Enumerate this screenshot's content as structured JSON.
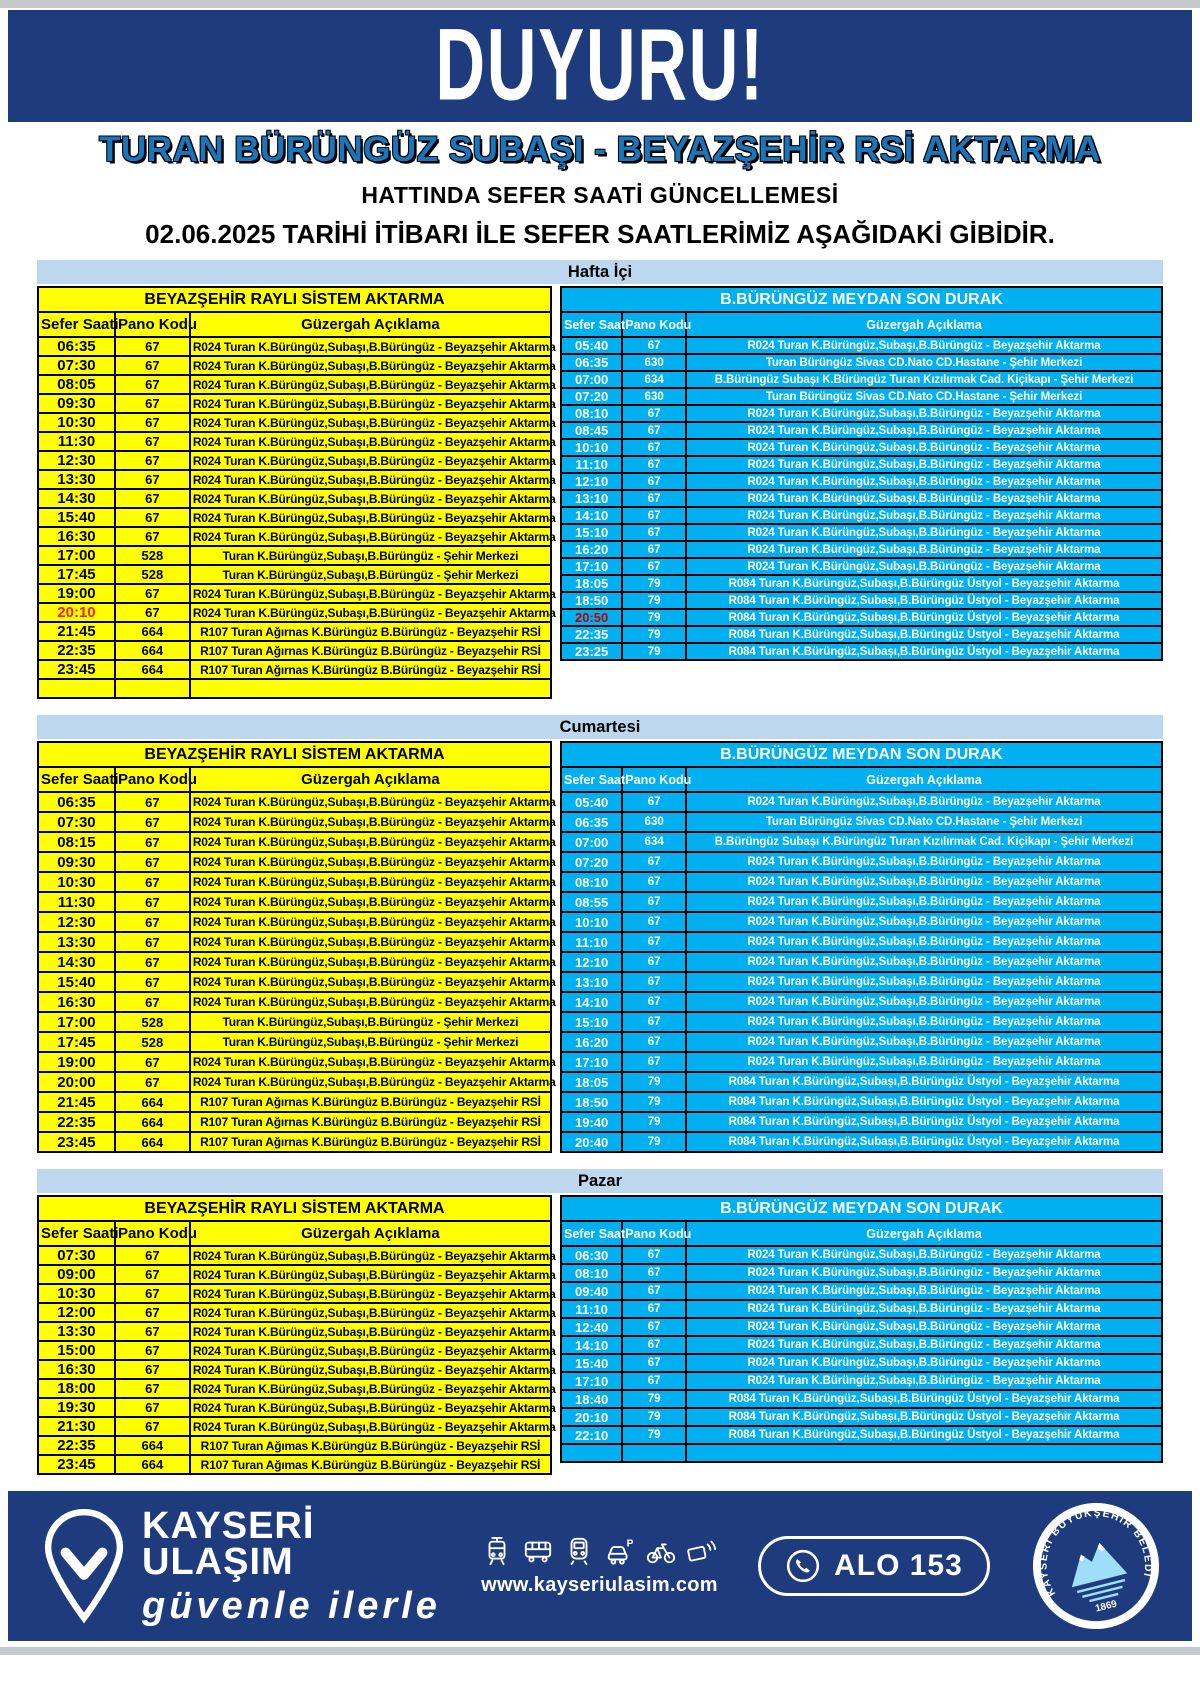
{
  "page": {
    "banner": "DUYURU!",
    "title": "TURAN BÜRÜNGÜZ SUBAŞI - BEYAZŞEHİR RSİ AKTARMA",
    "subtitle": "HATTINDA SEFER SAATİ GÜNCELLEMESİ",
    "date_line": "02.06.2025 TARİHİ İTİBARI İLE SEFER SAATLERİMİZ AŞAĞIDAKİ GİBİDİR."
  },
  "colors": {
    "navy": "#1e3c7d",
    "title_blue": "#1a75bb",
    "band_blue": "#bdd7ee",
    "left_table_yellow": "#ffff00",
    "right_table_cyan": "#00b0f0",
    "highlight_red_left": "#f61e00",
    "highlight_red_right": "#c00000"
  },
  "columns": [
    "Sefer Saati",
    "Pano Kodu",
    "Güzergah Açıklama"
  ],
  "sections": [
    {
      "label": "Hafta İçi",
      "left": {
        "title": "BEYAZŞEHİR RAYLI SİSTEM AKTARMA",
        "rows": [
          [
            "06:35",
            "67",
            "R024 Turan K.Bürüngüz,Subaşı,B.Bürüngüz - Beyazşehir Aktarma"
          ],
          [
            "07:30",
            "67",
            "R024 Turan K.Bürüngüz,Subaşı,B.Bürüngüz - Beyazşehir Aktarma"
          ],
          [
            "08:05",
            "67",
            "R024 Turan K.Bürüngüz,Subaşı,B.Bürüngüz - Beyazşehir Aktarma"
          ],
          [
            "09:30",
            "67",
            "R024 Turan K.Bürüngüz,Subaşı,B.Bürüngüz - Beyazşehir Aktarma"
          ],
          [
            "10:30",
            "67",
            "R024 Turan K.Bürüngüz,Subaşı,B.Bürüngüz - Beyazşehir Aktarma"
          ],
          [
            "11:30",
            "67",
            "R024 Turan K.Bürüngüz,Subaşı,B.Bürüngüz - Beyazşehir Aktarma"
          ],
          [
            "12:30",
            "67",
            "R024 Turan K.Bürüngüz,Subaşı,B.Bürüngüz - Beyazşehir Aktarma"
          ],
          [
            "13:30",
            "67",
            "R024 Turan K.Bürüngüz,Subaşı,B.Bürüngüz - Beyazşehir Aktarma"
          ],
          [
            "14:30",
            "67",
            "R024 Turan K.Bürüngüz,Subaşı,B.Bürüngüz - Beyazşehir Aktarma"
          ],
          [
            "15:40",
            "67",
            "R024 Turan K.Bürüngüz,Subaşı,B.Bürüngüz - Beyazşehir Aktarma"
          ],
          [
            "16:30",
            "67",
            "R024 Turan K.Bürüngüz,Subaşı,B.Bürüngüz - Beyazşehir Aktarma"
          ],
          [
            "17:00",
            "528",
            "Turan K.Bürüngüz,Subaşı,B.Bürüngüz - Şehir Merkezi"
          ],
          [
            "17:45",
            "528",
            "Turan K.Bürüngüz,Subaşı,B.Bürüngüz - Şehir Merkezi"
          ],
          [
            "19:00",
            "67",
            "R024 Turan K.Bürüngüz,Subaşı,B.Bürüngüz - Beyazşehir Aktarma"
          ],
          [
            "20:10",
            "67",
            "R024 Turan K.Bürüngüz,Subaşı,B.Bürüngüz - Beyazşehir Aktarma",
            true
          ],
          [
            "21:45",
            "664",
            "R107 Turan Ağırnas K.Bürüngüz B.Bürüngüz - Beyazşehir RSİ"
          ],
          [
            "22:35",
            "664",
            "R107 Turan Ağırnas K.Bürüngüz B.Bürüngüz - Beyazşehir RSİ"
          ],
          [
            "23:45",
            "664",
            "R107 Turan Ağırnas K.Bürüngüz B.Bürüngüz - Beyazşehir RSİ"
          ],
          [
            "",
            "",
            ""
          ]
        ]
      },
      "right": {
        "title": "B.BÜRÜNGÜZ MEYDAN SON DURAK",
        "rows": [
          [
            "05:40",
            "67",
            "R024 Turan K.Bürüngüz,Subaşı,B.Bürüngüz - Beyazşehir Aktarma"
          ],
          [
            "06:35",
            "630",
            "Turan Bürüngüz Sivas CD.Nato CD.Hastane - Şehir Merkezi"
          ],
          [
            "07:00",
            "634",
            "B.Bürüngüz Subaşı K.Bürüngüz Turan Kızılırmak Cad. Kiçikapı - Şehir Merkezi"
          ],
          [
            "07:20",
            "630",
            "Turan Bürüngüz Sivas CD.Nato CD.Hastane - Şehir Merkezi"
          ],
          [
            "08:10",
            "67",
            "R024 Turan K.Bürüngüz,Subaşı,B.Bürüngüz - Beyazşehir Aktarma"
          ],
          [
            "08:45",
            "67",
            "R024 Turan K.Bürüngüz,Subaşı,B.Bürüngüz - Beyazşehir Aktarma"
          ],
          [
            "10:10",
            "67",
            "R024 Turan K.Bürüngüz,Subaşı,B.Bürüngüz - Beyazşehir Aktarma"
          ],
          [
            "11:10",
            "67",
            "R024 Turan K.Bürüngüz,Subaşı,B.Bürüngüz - Beyazşehir Aktarma"
          ],
          [
            "12:10",
            "67",
            "R024 Turan K.Bürüngüz,Subaşı,B.Bürüngüz - Beyazşehir Aktarma"
          ],
          [
            "13:10",
            "67",
            "R024 Turan K.Bürüngüz,Subaşı,B.Bürüngüz - Beyazşehir Aktarma"
          ],
          [
            "14:10",
            "67",
            "R024 Turan K.Bürüngüz,Subaşı,B.Bürüngüz - Beyazşehir Aktarma"
          ],
          [
            "15:10",
            "67",
            "R024 Turan K.Bürüngüz,Subaşı,B.Bürüngüz - Beyazşehir Aktarma"
          ],
          [
            "16:20",
            "67",
            "R024 Turan K.Bürüngüz,Subaşı,B.Bürüngüz - Beyazşehir Aktarma"
          ],
          [
            "17:10",
            "67",
            "R024 Turan K.Bürüngüz,Subaşı,B.Bürüngüz - Beyazşehir Aktarma"
          ],
          [
            "18:05",
            "79",
            "R084 Turan K.Bürüngüz,Subaşı,B.Bürüngüz Üstyol - Beyazşehir Aktarma"
          ],
          [
            "18:50",
            "79",
            "R084 Turan K.Bürüngüz,Subaşı,B.Bürüngüz Üstyol - Beyazşehir Aktarma"
          ],
          [
            "20:50",
            "79",
            "R084 Turan K.Bürüngüz,Subaşı,B.Bürüngüz Üstyol - Beyazşehir Aktarma",
            true
          ],
          [
            "22:35",
            "79",
            "R084 Turan K.Bürüngüz,Subaşı,B.Bürüngüz Üstyol - Beyazşehir Aktarma"
          ],
          [
            "23:25",
            "79",
            "R084 Turan K.Bürüngüz,Subaşı,B.Bürüngüz Üstyol - Beyazşehir Aktarma"
          ]
        ]
      }
    },
    {
      "label": "Cumartesi",
      "left": {
        "title": "BEYAZŞEHİR RAYLI SİSTEM AKTARMA",
        "rows": [
          [
            "06:35",
            "67",
            "R024 Turan K.Bürüngüz,Subaşı,B.Bürüngüz - Beyazşehir Aktarma"
          ],
          [
            "07:30",
            "67",
            "R024 Turan K.Bürüngüz,Subaşı,B.Bürüngüz - Beyazşehir Aktarma"
          ],
          [
            "08:15",
            "67",
            "R024 Turan K.Bürüngüz,Subaşı,B.Bürüngüz - Beyazşehir Aktarma"
          ],
          [
            "09:30",
            "67",
            "R024 Turan K.Bürüngüz,Subaşı,B.Bürüngüz - Beyazşehir Aktarma"
          ],
          [
            "10:30",
            "67",
            "R024 Turan K.Bürüngüz,Subaşı,B.Bürüngüz - Beyazşehir Aktarma"
          ],
          [
            "11:30",
            "67",
            "R024 Turan K.Bürüngüz,Subaşı,B.Bürüngüz - Beyazşehir Aktarma"
          ],
          [
            "12:30",
            "67",
            "R024 Turan K.Bürüngüz,Subaşı,B.Bürüngüz - Beyazşehir Aktarma"
          ],
          [
            "13:30",
            "67",
            "R024 Turan K.Bürüngüz,Subaşı,B.Bürüngüz - Beyazşehir Aktarma"
          ],
          [
            "14:30",
            "67",
            "R024 Turan K.Bürüngüz,Subaşı,B.Bürüngüz - Beyazşehir Aktarma"
          ],
          [
            "15:40",
            "67",
            "R024 Turan K.Bürüngüz,Subaşı,B.Bürüngüz - Beyazşehir Aktarma"
          ],
          [
            "16:30",
            "67",
            "R024 Turan K.Bürüngüz,Subaşı,B.Bürüngüz - Beyazşehir Aktarma"
          ],
          [
            "17:00",
            "528",
            "Turan K.Bürüngüz,Subaşı,B.Bürüngüz - Şehir Merkezi"
          ],
          [
            "17:45",
            "528",
            "Turan K.Bürüngüz,Subaşı,B.Bürüngüz - Şehir Merkezi"
          ],
          [
            "19:00",
            "67",
            "R024 Turan K.Bürüngüz,Subaşı,B.Bürüngüz - Beyazşehir Aktarma"
          ],
          [
            "20:00",
            "67",
            "R024 Turan K.Bürüngüz,Subaşı,B.Bürüngüz - Beyazşehir Aktarma"
          ],
          [
            "21:45",
            "664",
            "R107 Turan Ağırnas K.Bürüngüz B.Bürüngüz - Beyazşehir RSİ"
          ],
          [
            "22:35",
            "664",
            "R107 Turan Ağırnas K.Bürüngüz B.Bürüngüz - Beyazşehir RSİ"
          ],
          [
            "23:45",
            "664",
            "R107 Turan Ağırnas K.Bürüngüz B.Bürüngüz - Beyazşehir RSİ"
          ]
        ]
      },
      "right": {
        "title": "B.BÜRÜNGÜZ MEYDAN SON DURAK",
        "rows": [
          [
            "05:40",
            "67",
            "R024 Turan K.Bürüngüz,Subaşı,B.Bürüngüz - Beyazşehir Aktarma"
          ],
          [
            "06:35",
            "630",
            "Turan Bürüngüz Sivas CD.Nato CD.Hastane - Şehir Merkezi"
          ],
          [
            "07:00",
            "634",
            "B.Bürüngüz Subaşı K.Bürüngüz Turan Kızılırmak Cad. Kiçikapı - Şehir Merkezi"
          ],
          [
            "07:20",
            "67",
            "R024 Turan K.Bürüngüz,Subaşı,B.Bürüngüz - Beyazşehir Aktarma"
          ],
          [
            "08:10",
            "67",
            "R024 Turan K.Bürüngüz,Subaşı,B.Bürüngüz - Beyazşehir Aktarma"
          ],
          [
            "08:55",
            "67",
            "R024 Turan K.Bürüngüz,Subaşı,B.Bürüngüz - Beyazşehir Aktarma"
          ],
          [
            "10:10",
            "67",
            "R024 Turan K.Bürüngüz,Subaşı,B.Bürüngüz - Beyazşehir Aktarma"
          ],
          [
            "11:10",
            "67",
            "R024 Turan K.Bürüngüz,Subaşı,B.Bürüngüz - Beyazşehir Aktarma"
          ],
          [
            "12:10",
            "67",
            "R024 Turan K.Bürüngüz,Subaşı,B.Bürüngüz - Beyazşehir Aktarma"
          ],
          [
            "13:10",
            "67",
            "R024 Turan K.Bürüngüz,Subaşı,B.Bürüngüz - Beyazşehir Aktarma"
          ],
          [
            "14:10",
            "67",
            "R024 Turan K.Bürüngüz,Subaşı,B.Bürüngüz - Beyazşehir Aktarma"
          ],
          [
            "15:10",
            "67",
            "R024 Turan K.Bürüngüz,Subaşı,B.Bürüngüz - Beyazşehir Aktarma"
          ],
          [
            "16:20",
            "67",
            "R024 Turan K.Bürüngüz,Subaşı,B.Bürüngüz - Beyazşehir Aktarma"
          ],
          [
            "17:10",
            "67",
            "R024 Turan K.Bürüngüz,Subaşı,B.Bürüngüz - Beyazşehir Aktarma"
          ],
          [
            "18:05",
            "79",
            "R084 Turan K.Bürüngüz,Subaşı,B.Bürüngüz Üstyol - Beyazşehir Aktarma"
          ],
          [
            "18:50",
            "79",
            "R084 Turan K.Bürüngüz,Subaşı,B.Bürüngüz Üstyol - Beyazşehir Aktarma"
          ],
          [
            "19:40",
            "79",
            "R084 Turan K.Bürüngüz,Subaşı,B.Bürüngüz Üstyol - Beyazşehir Aktarma"
          ],
          [
            "20:40",
            "79",
            "R084 Turan K.Bürüngüz,Subaşı,B.Bürüngüz Üstyol - Beyazşehir Aktarma"
          ]
        ]
      }
    },
    {
      "label": "Pazar",
      "left": {
        "title": "BEYAZŞEHİR RAYLI SİSTEM AKTARMA",
        "rows": [
          [
            "07:30",
            "67",
            "R024 Turan K.Bürüngüz,Subaşı,B.Bürüngüz - Beyazşehir Aktarma"
          ],
          [
            "09:00",
            "67",
            "R024 Turan K.Bürüngüz,Subaşı,B.Bürüngüz - Beyazşehir Aktarma"
          ],
          [
            "10:30",
            "67",
            "R024 Turan K.Bürüngüz,Subaşı,B.Bürüngüz - Beyazşehir Aktarma"
          ],
          [
            "12:00",
            "67",
            "R024 Turan K.Bürüngüz,Subaşı,B.Bürüngüz - Beyazşehir Aktarma"
          ],
          [
            "13:30",
            "67",
            "R024 Turan K.Bürüngüz,Subaşı,B.Bürüngüz - Beyazşehir Aktarma"
          ],
          [
            "15:00",
            "67",
            "R024 Turan K.Bürüngüz,Subaşı,B.Bürüngüz - Beyazşehir Aktarma"
          ],
          [
            "16:30",
            "67",
            "R024 Turan K.Bürüngüz,Subaşı,B.Bürüngüz - Beyazşehir Aktarma"
          ],
          [
            "18:00",
            "67",
            "R024 Turan K.Bürüngüz,Subaşı,B.Bürüngüz - Beyazşehir Aktarma"
          ],
          [
            "19:30",
            "67",
            "R024 Turan K.Bürüngüz,Subaşı,B.Bürüngüz - Beyazşehir Aktarma"
          ],
          [
            "21:30",
            "67",
            "R024 Turan K.Bürüngüz,Subaşı,B.Bürüngüz - Beyazşehir Aktarma"
          ],
          [
            "22:35",
            "664",
            "R107 Turan Ağımas K.Bürüngüz B.Bürüngüz - Beyazşehir RSİ"
          ],
          [
            "23:45",
            "664",
            "R107 Turan Ağımas K.Bürüngüz B.Bürüngüz - Beyazşehir RSİ"
          ]
        ]
      },
      "right": {
        "title": "B.BÜRÜNGÜZ MEYDAN SON DURAK",
        "rows": [
          [
            "06:30",
            "67",
            "R024 Turan K.Bürüngüz,Subaşı,B.Bürüngüz - Beyazşehir Aktarma"
          ],
          [
            "08:10",
            "67",
            "R024 Turan K.Bürüngüz,Subaşı,B.Bürüngüz - Beyazşehir Aktarma"
          ],
          [
            "09:40",
            "67",
            "R024 Turan K.Bürüngüz,Subaşı,B.Bürüngüz - Beyazşehir Aktarma"
          ],
          [
            "11:10",
            "67",
            "R024 Turan K.Bürüngüz,Subaşı,B.Bürüngüz - Beyazşehir Aktarma"
          ],
          [
            "12:40",
            "67",
            "R024 Turan K.Bürüngüz,Subaşı,B.Bürüngüz - Beyazşehir Aktarma"
          ],
          [
            "14:10",
            "67",
            "R024 Turan K.Bürüngüz,Subaşı,B.Bürüngüz - Beyazşehir Aktarma"
          ],
          [
            "15:40",
            "67",
            "R024 Turan K.Bürüngüz,Subaşı,B.Bürüngüz - Beyazşehir Aktarma"
          ],
          [
            "17:10",
            "67",
            "R024 Turan K.Bürüngüz,Subaşı,B.Bürüngüz - Beyazşehir Aktarma"
          ],
          [
            "18:40",
            "79",
            "R084 Turan K.Bürüngüz,Subaşı,B.Bürüngüz Üstyol - Beyazşehir Aktarma"
          ],
          [
            "20:10",
            "79",
            "R084 Turan K.Bürüngüz,Subaşı,B.Bürüngüz Üstyol - Beyazşehir Aktarma"
          ],
          [
            "22:10",
            "79",
            "R084 Turan K.Bürüngüz,Subaşı,B.Bürüngüz Üstyol - Beyazşehir Aktarma"
          ],
          [
            "",
            "",
            ""
          ]
        ]
      }
    }
  ],
  "footer": {
    "brand_line1": "KAYSERİ",
    "brand_line2": "ULAŞIM",
    "tagline": "güvenle ilerle",
    "website": "www.kayseriulasim.com",
    "phone_label": "ALO 153",
    "seal_text": "KAYSERİ BÜYÜKŞEHİR BELEDİYESİ",
    "seal_year": "1869",
    "icons": [
      "tram-icon",
      "bus-icon",
      "train-icon",
      "parking-icon",
      "bike-icon",
      "contactless-card-icon"
    ]
  }
}
